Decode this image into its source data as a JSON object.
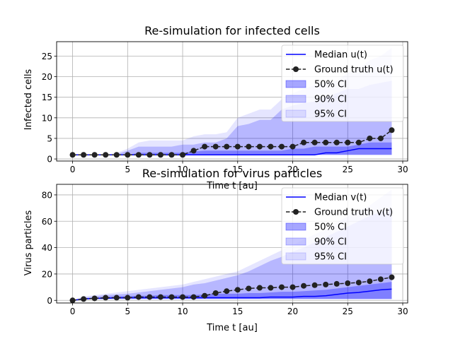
{
  "colors": {
    "median": "#0000ff",
    "ground_truth": "#222222",
    "ci50": "#0000ff",
    "ci90": "#0000ff",
    "ci95": "#0000ff",
    "grid": "#b0b0b0"
  },
  "chart_data": [
    {
      "type": "line",
      "title": "Re-simulation for infected cells",
      "xlabel": "Time t [au]",
      "ylabel": "Infected cells",
      "xlim": [
        -1.45,
        30.45
      ],
      "ylim": [
        -0.5,
        28.5
      ],
      "xticks": [
        0,
        5,
        10,
        15,
        20,
        25,
        30
      ],
      "yticks": [
        0,
        5,
        10,
        15,
        20,
        25
      ],
      "grid": true,
      "legend_position": "top-right",
      "legend": [
        "Median u(t)",
        "Ground truth u(t)",
        "50% CI",
        "90% CI",
        "95% CI"
      ],
      "x": [
        0,
        1,
        2,
        3,
        4,
        5,
        6,
        7,
        8,
        9,
        10,
        11,
        12,
        13,
        14,
        15,
        16,
        17,
        18,
        19,
        20,
        21,
        22,
        23,
        24,
        25,
        26,
        27,
        28,
        29
      ],
      "ground_truth": [
        1,
        1,
        1,
        1,
        1,
        1,
        1,
        1,
        1,
        1,
        1,
        2,
        3,
        3,
        3,
        3,
        3,
        3,
        3,
        3,
        3,
        4,
        4,
        4,
        4,
        4,
        4,
        5,
        5,
        7
      ],
      "median": [
        1,
        1,
        1,
        1,
        1,
        1,
        1,
        1,
        1,
        1,
        1,
        1,
        1,
        1,
        1,
        1,
        1,
        1,
        1,
        1,
        1,
        1,
        1,
        1.5,
        1.5,
        2,
        2.5,
        2.5,
        2.5,
        2.5
      ],
      "ci50": {
        "low": [
          1,
          1,
          1,
          1,
          1,
          1,
          1,
          1,
          1,
          1,
          1,
          1,
          1,
          1,
          1,
          1,
          1,
          1,
          1,
          1,
          1,
          1,
          1,
          1,
          1,
          1,
          1,
          1,
          1,
          1
        ],
        "high": [
          1,
          1,
          1,
          1,
          1,
          1,
          1.5,
          1.5,
          1.5,
          1.5,
          1.5,
          1.8,
          2,
          2,
          2,
          2,
          2,
          2,
          2,
          2,
          2.5,
          2.5,
          3,
          3,
          3,
          3,
          3.5,
          4,
          4,
          4
        ]
      },
      "ci90": {
        "low": [
          1,
          1,
          1,
          1,
          1,
          1,
          1,
          1,
          1,
          1,
          1,
          1,
          1,
          1,
          1,
          1,
          1,
          1,
          1,
          1,
          1,
          1,
          1,
          1,
          1,
          1,
          1,
          1,
          1,
          1
        ],
        "high": [
          1,
          1,
          1,
          1,
          1.2,
          2,
          3,
          3,
          3,
          3,
          3.5,
          3.5,
          4,
          4,
          5,
          8,
          8.5,
          9.5,
          9.5,
          12,
          13,
          13.5,
          14,
          15,
          16,
          17,
          17,
          18,
          18.5,
          19
        ]
      },
      "ci95": {
        "low": [
          1,
          1,
          1,
          1,
          1,
          1,
          1,
          1,
          1,
          1,
          1,
          1,
          1,
          1,
          1,
          1,
          1,
          1,
          1,
          1,
          1,
          1,
          1,
          1,
          1,
          1,
          1,
          1,
          1,
          1
        ],
        "high": [
          1,
          1,
          1,
          1,
          1.5,
          2.5,
          4,
          4.5,
          4.5,
          4.5,
          4.5,
          5.5,
          6,
          6,
          6.5,
          10,
          11,
          12,
          12,
          14.5,
          16,
          17,
          18,
          18.5,
          19,
          21,
          22,
          24,
          25,
          27
        ]
      }
    },
    {
      "type": "line",
      "title": "Re-simulation for virus particles",
      "xlabel": "Time t [au]",
      "ylabel": "Virus particles",
      "xlim": [
        -1.45,
        30.45
      ],
      "ylim": [
        -2,
        88
      ],
      "xticks": [
        0,
        5,
        10,
        15,
        20,
        25,
        30
      ],
      "yticks": [
        0,
        20,
        40,
        60,
        80
      ],
      "grid": true,
      "legend_position": "top-right",
      "legend": [
        "Median v(t)",
        "Ground truth v(t)",
        "50% CI",
        "90% CI",
        "95% CI"
      ],
      "x": [
        0,
        1,
        2,
        3,
        4,
        5,
        6,
        7,
        8,
        9,
        10,
        11,
        12,
        13,
        14,
        15,
        16,
        17,
        18,
        19,
        20,
        21,
        22,
        23,
        24,
        25,
        26,
        27,
        28,
        29
      ],
      "ground_truth": [
        0,
        1,
        1.5,
        2,
        2,
        2,
        2.5,
        2.5,
        2.5,
        2.5,
        2.5,
        2.5,
        3.5,
        5.5,
        7,
        8,
        9,
        9.5,
        9.5,
        10,
        10,
        11,
        11.5,
        12,
        12.5,
        13,
        13.5,
        14.5,
        16,
        17.5
      ],
      "median": [
        0,
        1,
        1.5,
        1.5,
        2,
        2,
        2,
        2,
        2,
        2,
        2,
        2,
        2,
        2,
        2,
        2,
        2,
        2,
        2.5,
        2.5,
        2.5,
        3,
        3,
        3.5,
        4.5,
        5.5,
        6,
        7,
        8,
        8.5
      ],
      "ci50": {
        "low": [
          0,
          0.5,
          1,
          1,
          1,
          1,
          1,
          1,
          1,
          1,
          1,
          1,
          1,
          1,
          1,
          1,
          1,
          1,
          1,
          1,
          1,
          1,
          1,
          1,
          1,
          1,
          1,
          1,
          1,
          1
        ],
        "high": [
          0,
          1.5,
          2,
          2.5,
          3,
          3,
          3.5,
          3.5,
          4,
          4,
          4,
          4,
          4.5,
          5,
          5,
          5,
          5.5,
          5.5,
          6,
          6.5,
          6.5,
          7,
          7.5,
          8,
          9,
          10,
          11,
          12,
          13,
          14
        ]
      },
      "ci90": {
        "low": [
          0,
          0.5,
          1,
          1,
          1,
          1,
          1,
          1,
          1,
          1,
          1,
          1,
          1,
          1,
          1,
          1,
          1,
          1,
          1,
          1,
          1,
          1,
          1,
          1,
          1,
          1,
          1,
          1,
          1,
          1
        ],
        "high": [
          0,
          2,
          3,
          4,
          4.5,
          5,
          6,
          7,
          8,
          9,
          10,
          12,
          13,
          15,
          17,
          19,
          22,
          26,
          30,
          33,
          37,
          40,
          44,
          48,
          52,
          56,
          60,
          64,
          67,
          70
        ]
      },
      "ci95": {
        "low": [
          0,
          0.5,
          1,
          1,
          1,
          1,
          1,
          1,
          1,
          1,
          1,
          1,
          1,
          1,
          1,
          1,
          1,
          1,
          1,
          1,
          1,
          1,
          1,
          1,
          1,
          1,
          1,
          1,
          1,
          1
        ],
        "high": [
          0,
          3,
          4,
          5,
          6,
          7,
          8,
          9,
          10,
          11,
          12,
          14,
          16,
          18,
          20,
          22,
          26,
          30,
          34,
          38,
          42,
          46,
          50,
          54,
          59,
          64,
          68,
          72,
          78,
          84
        ]
      }
    }
  ]
}
